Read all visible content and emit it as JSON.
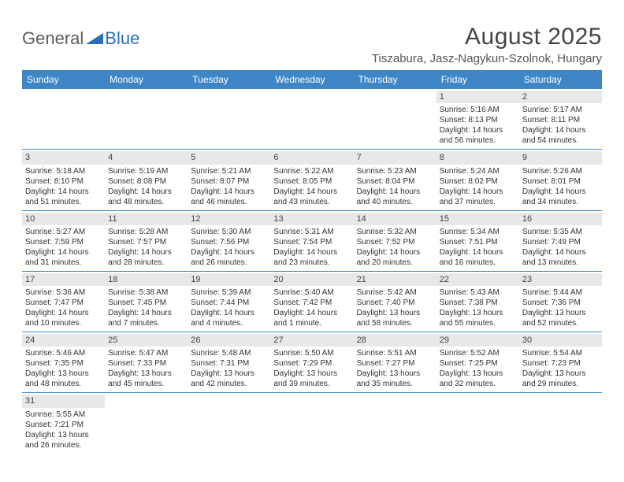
{
  "logo": {
    "general": "General",
    "blue": "Blue"
  },
  "title": "August 2025",
  "location": "Tiszabura, Jasz-Nagykun-Szolnok, Hungary",
  "brand_color": "#3f86c7",
  "gray_band": "#e8e8e8",
  "day_names": [
    "Sunday",
    "Monday",
    "Tuesday",
    "Wednesday",
    "Thursday",
    "Friday",
    "Saturday"
  ],
  "weeks": [
    [
      null,
      null,
      null,
      null,
      null,
      {
        "n": "1",
        "sr": "5:16 AM",
        "ss": "8:13 PM",
        "dl": "14 hours and 56 minutes."
      },
      {
        "n": "2",
        "sr": "5:17 AM",
        "ss": "8:11 PM",
        "dl": "14 hours and 54 minutes."
      }
    ],
    [
      {
        "n": "3",
        "sr": "5:18 AM",
        "ss": "8:10 PM",
        "dl": "14 hours and 51 minutes."
      },
      {
        "n": "4",
        "sr": "5:19 AM",
        "ss": "8:08 PM",
        "dl": "14 hours and 48 minutes."
      },
      {
        "n": "5",
        "sr": "5:21 AM",
        "ss": "8:07 PM",
        "dl": "14 hours and 46 minutes."
      },
      {
        "n": "6",
        "sr": "5:22 AM",
        "ss": "8:05 PM",
        "dl": "14 hours and 43 minutes."
      },
      {
        "n": "7",
        "sr": "5:23 AM",
        "ss": "8:04 PM",
        "dl": "14 hours and 40 minutes."
      },
      {
        "n": "8",
        "sr": "5:24 AM",
        "ss": "8:02 PM",
        "dl": "14 hours and 37 minutes."
      },
      {
        "n": "9",
        "sr": "5:26 AM",
        "ss": "8:01 PM",
        "dl": "14 hours and 34 minutes."
      }
    ],
    [
      {
        "n": "10",
        "sr": "5:27 AM",
        "ss": "7:59 PM",
        "dl": "14 hours and 31 minutes."
      },
      {
        "n": "11",
        "sr": "5:28 AM",
        "ss": "7:57 PM",
        "dl": "14 hours and 28 minutes."
      },
      {
        "n": "12",
        "sr": "5:30 AM",
        "ss": "7:56 PM",
        "dl": "14 hours and 26 minutes."
      },
      {
        "n": "13",
        "sr": "5:31 AM",
        "ss": "7:54 PM",
        "dl": "14 hours and 23 minutes."
      },
      {
        "n": "14",
        "sr": "5:32 AM",
        "ss": "7:52 PM",
        "dl": "14 hours and 20 minutes."
      },
      {
        "n": "15",
        "sr": "5:34 AM",
        "ss": "7:51 PM",
        "dl": "14 hours and 16 minutes."
      },
      {
        "n": "16",
        "sr": "5:35 AM",
        "ss": "7:49 PM",
        "dl": "14 hours and 13 minutes."
      }
    ],
    [
      {
        "n": "17",
        "sr": "5:36 AM",
        "ss": "7:47 PM",
        "dl": "14 hours and 10 minutes."
      },
      {
        "n": "18",
        "sr": "5:38 AM",
        "ss": "7:45 PM",
        "dl": "14 hours and 7 minutes."
      },
      {
        "n": "19",
        "sr": "5:39 AM",
        "ss": "7:44 PM",
        "dl": "14 hours and 4 minutes."
      },
      {
        "n": "20",
        "sr": "5:40 AM",
        "ss": "7:42 PM",
        "dl": "14 hours and 1 minute."
      },
      {
        "n": "21",
        "sr": "5:42 AM",
        "ss": "7:40 PM",
        "dl": "13 hours and 58 minutes."
      },
      {
        "n": "22",
        "sr": "5:43 AM",
        "ss": "7:38 PM",
        "dl": "13 hours and 55 minutes."
      },
      {
        "n": "23",
        "sr": "5:44 AM",
        "ss": "7:36 PM",
        "dl": "13 hours and 52 minutes."
      }
    ],
    [
      {
        "n": "24",
        "sr": "5:46 AM",
        "ss": "7:35 PM",
        "dl": "13 hours and 48 minutes."
      },
      {
        "n": "25",
        "sr": "5:47 AM",
        "ss": "7:33 PM",
        "dl": "13 hours and 45 minutes."
      },
      {
        "n": "26",
        "sr": "5:48 AM",
        "ss": "7:31 PM",
        "dl": "13 hours and 42 minutes."
      },
      {
        "n": "27",
        "sr": "5:50 AM",
        "ss": "7:29 PM",
        "dl": "13 hours and 39 minutes."
      },
      {
        "n": "28",
        "sr": "5:51 AM",
        "ss": "7:27 PM",
        "dl": "13 hours and 35 minutes."
      },
      {
        "n": "29",
        "sr": "5:52 AM",
        "ss": "7:25 PM",
        "dl": "13 hours and 32 minutes."
      },
      {
        "n": "30",
        "sr": "5:54 AM",
        "ss": "7:23 PM",
        "dl": "13 hours and 29 minutes."
      }
    ],
    [
      {
        "n": "31",
        "sr": "5:55 AM",
        "ss": "7:21 PM",
        "dl": "13 hours and 26 minutes."
      },
      null,
      null,
      null,
      null,
      null,
      null
    ]
  ],
  "labels": {
    "sunrise": "Sunrise: ",
    "sunset": "Sunset: ",
    "daylight": "Daylight: "
  }
}
